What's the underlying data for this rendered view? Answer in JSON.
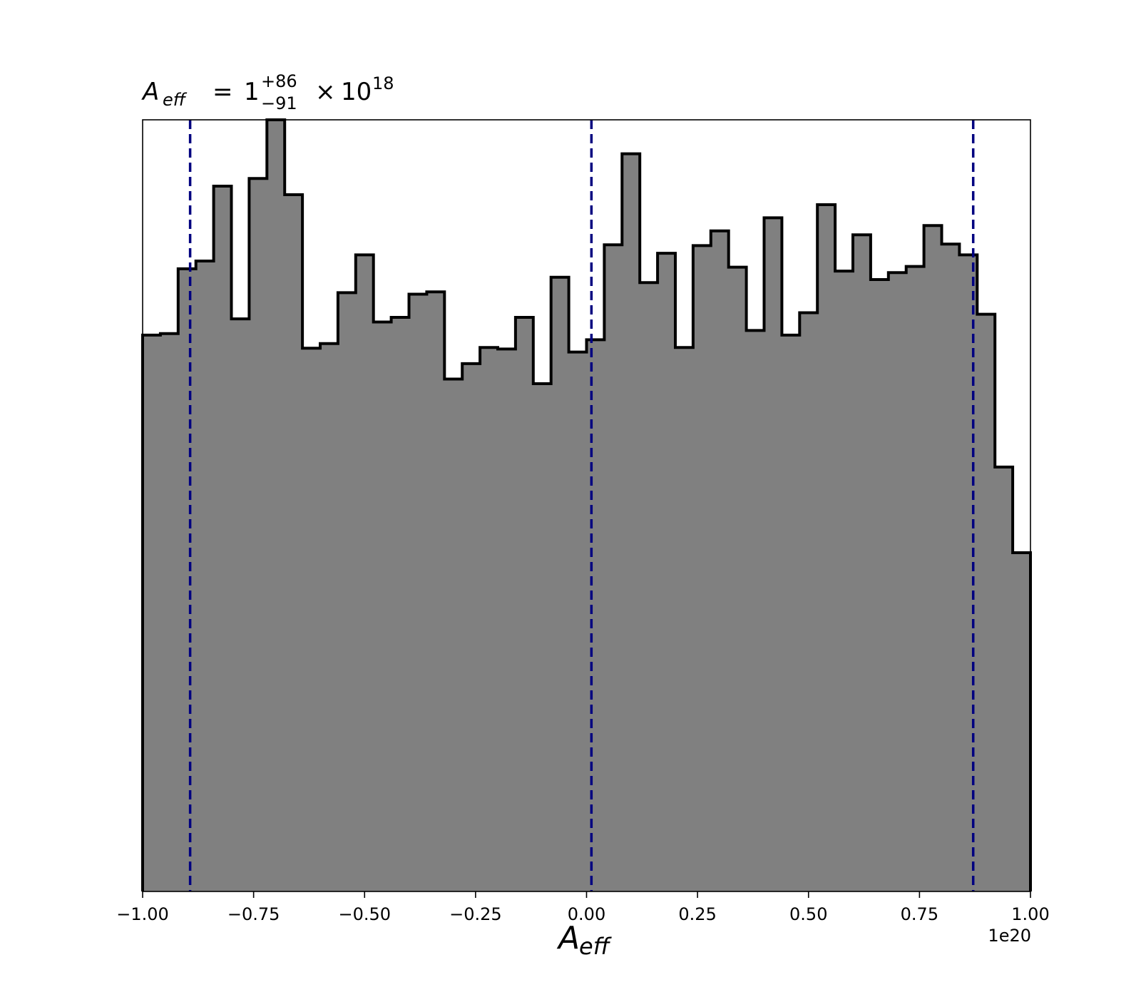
{
  "chart_data": {
    "type": "bar",
    "histtype": "stepfilled",
    "title": {
      "symbol": "A",
      "subscript": "eff",
      "equals": "=",
      "base": "1",
      "sup": "+86",
      "sub": "−91",
      "times": "×",
      "power_base": "10",
      "exponent": "18"
    },
    "xlabel": {
      "symbol": "A",
      "subscript": "eff"
    },
    "ylabel": "",
    "x_offset_label": "1e20",
    "xlim": [
      -1.0,
      1.0
    ],
    "ylim": [
      0,
      100
    ],
    "xticks": [
      -1.0,
      -0.75,
      -0.5,
      -0.25,
      0.0,
      0.25,
      0.5,
      0.75,
      1.0
    ],
    "xtick_labels": [
      "−1.00",
      "−0.75",
      "−0.50",
      "−0.25",
      "0.00",
      "0.25",
      "0.50",
      "0.75",
      "1.00"
    ],
    "show_yticks": false,
    "grid": false,
    "fill_color": "#808080",
    "edge_color": "#000000",
    "bin_edges": [
      -1.0,
      -0.96,
      -0.92,
      -0.88,
      -0.84,
      -0.8,
      -0.76,
      -0.72,
      -0.68,
      -0.64,
      -0.6,
      -0.56,
      -0.52,
      -0.48,
      -0.44,
      -0.4,
      -0.36,
      -0.32,
      -0.28,
      -0.24,
      -0.2,
      -0.16,
      -0.12,
      -0.08,
      -0.04,
      0.0,
      0.04,
      0.08,
      0.12,
      0.16,
      0.2,
      0.24,
      0.28,
      0.32,
      0.36,
      0.4,
      0.44,
      0.48,
      0.52,
      0.56,
      0.6,
      0.64,
      0.68,
      0.72,
      0.76,
      0.8,
      0.84,
      0.88,
      0.92,
      0.96,
      1.0
    ],
    "values": [
      72.1,
      72.3,
      80.7,
      81.7,
      91.4,
      74.2,
      92.4,
      100.0,
      90.3,
      70.4,
      71.0,
      77.6,
      82.5,
      73.8,
      74.4,
      77.4,
      77.7,
      66.4,
      68.4,
      70.5,
      70.3,
      74.4,
      65.8,
      79.6,
      69.9,
      71.5,
      83.8,
      95.6,
      78.9,
      82.7,
      70.5,
      83.7,
      85.6,
      80.9,
      72.7,
      87.3,
      72.1,
      75.0,
      89.0,
      80.4,
      85.1,
      79.3,
      80.2,
      81.0,
      86.3,
      83.9,
      82.5,
      74.8,
      55.0,
      43.9
    ],
    "quantiles": {
      "color": "#000080",
      "style": "dashed",
      "values": [
        -0.893,
        0.011,
        0.871
      ]
    }
  }
}
